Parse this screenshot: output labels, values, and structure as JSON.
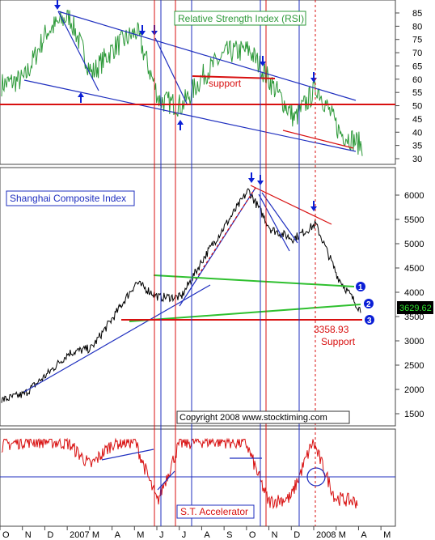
{
  "rsi_panel": {
    "title": "Relative Strength Index (RSI)",
    "axis_ticks": [
      "85",
      "80",
      "75",
      "70",
      "65",
      "60",
      "55",
      "50",
      "45",
      "40",
      "35",
      "30"
    ],
    "support_label": "support",
    "level_line": 50
  },
  "price_panel": {
    "title": "Shanghai Composite Index",
    "axis_ticks": [
      "6000",
      "5500",
      "5000",
      "4500",
      "4000",
      "3500",
      "3000",
      "2500",
      "2000",
      "1500"
    ],
    "last_value": "3629.62",
    "support_value": "3358.93",
    "support_text": "Support",
    "markers": [
      "1",
      "2",
      "3"
    ],
    "copyright": "Copyright 2008 www.stocktiming.com"
  },
  "accel_panel": {
    "title": "S.T. Accelerator"
  },
  "x_axis": {
    "labels": [
      "O",
      "N",
      "D",
      "2007",
      "M",
      "A",
      "M",
      "J",
      "J",
      "A",
      "S",
      "O",
      "N",
      "D",
      "2008",
      "M",
      "A",
      "M"
    ]
  },
  "colors": {
    "rsi_line": "#2e9a3a",
    "price_line": "#000000",
    "trend_blue": "#1f2fbf",
    "trend_red": "#d81010",
    "trend_green": "#2fc02f",
    "accent_blue": "#0b1fd6",
    "grid": "#c8c8c8"
  },
  "chart_data": [
    {
      "type": "line",
      "title": "Relative Strength Index (RSI)",
      "ylim": [
        30,
        87
      ],
      "annotations": [
        "support"
      ],
      "reference_levels": [
        50
      ],
      "x": [
        "O",
        "N",
        "D",
        "2007",
        "M",
        "A",
        "M",
        "J",
        "J",
        "A",
        "S",
        "O",
        "N",
        "D",
        "2008",
        "M",
        "A"
      ],
      "series": [
        {
          "values": [
            58,
            60,
            78,
            84,
            62,
            72,
            78,
            52,
            50,
            62,
            70,
            71,
            58,
            45,
            57,
            40,
            35
          ]
        }
      ]
    },
    {
      "type": "line",
      "title": "Shanghai Composite Index",
      "ylim": [
        1200,
        6500
      ],
      "annotations": [
        "3358.93 Support",
        "3629.62"
      ],
      "x": [
        "O",
        "N",
        "D",
        "2007",
        "M",
        "A",
        "M",
        "J",
        "J",
        "A",
        "S",
        "O",
        "N",
        "D",
        "2008",
        "M",
        "A"
      ],
      "series": [
        {
          "values": [
            1780,
            1900,
            2300,
            2750,
            2850,
            3500,
            4200,
            3900,
            3900,
            4700,
            5400,
            6100,
            5300,
            5100,
            5400,
            4300,
            3630
          ]
        }
      ]
    },
    {
      "type": "line",
      "title": "S.T. Accelerator",
      "x": [
        "O",
        "N",
        "D",
        "2007",
        "M",
        "A",
        "M",
        "J",
        "J",
        "A",
        "S",
        "O",
        "N",
        "D",
        "2008",
        "M",
        "A"
      ],
      "series": [
        {
          "values": [
            0.8,
            0.9,
            0.9,
            0.85,
            0.3,
            0.85,
            0.9,
            -0.6,
            0.85,
            0.9,
            0.9,
            0.85,
            -0.6,
            -0.5,
            0.9,
            -0.5,
            -0.6
          ]
        }
      ]
    }
  ]
}
